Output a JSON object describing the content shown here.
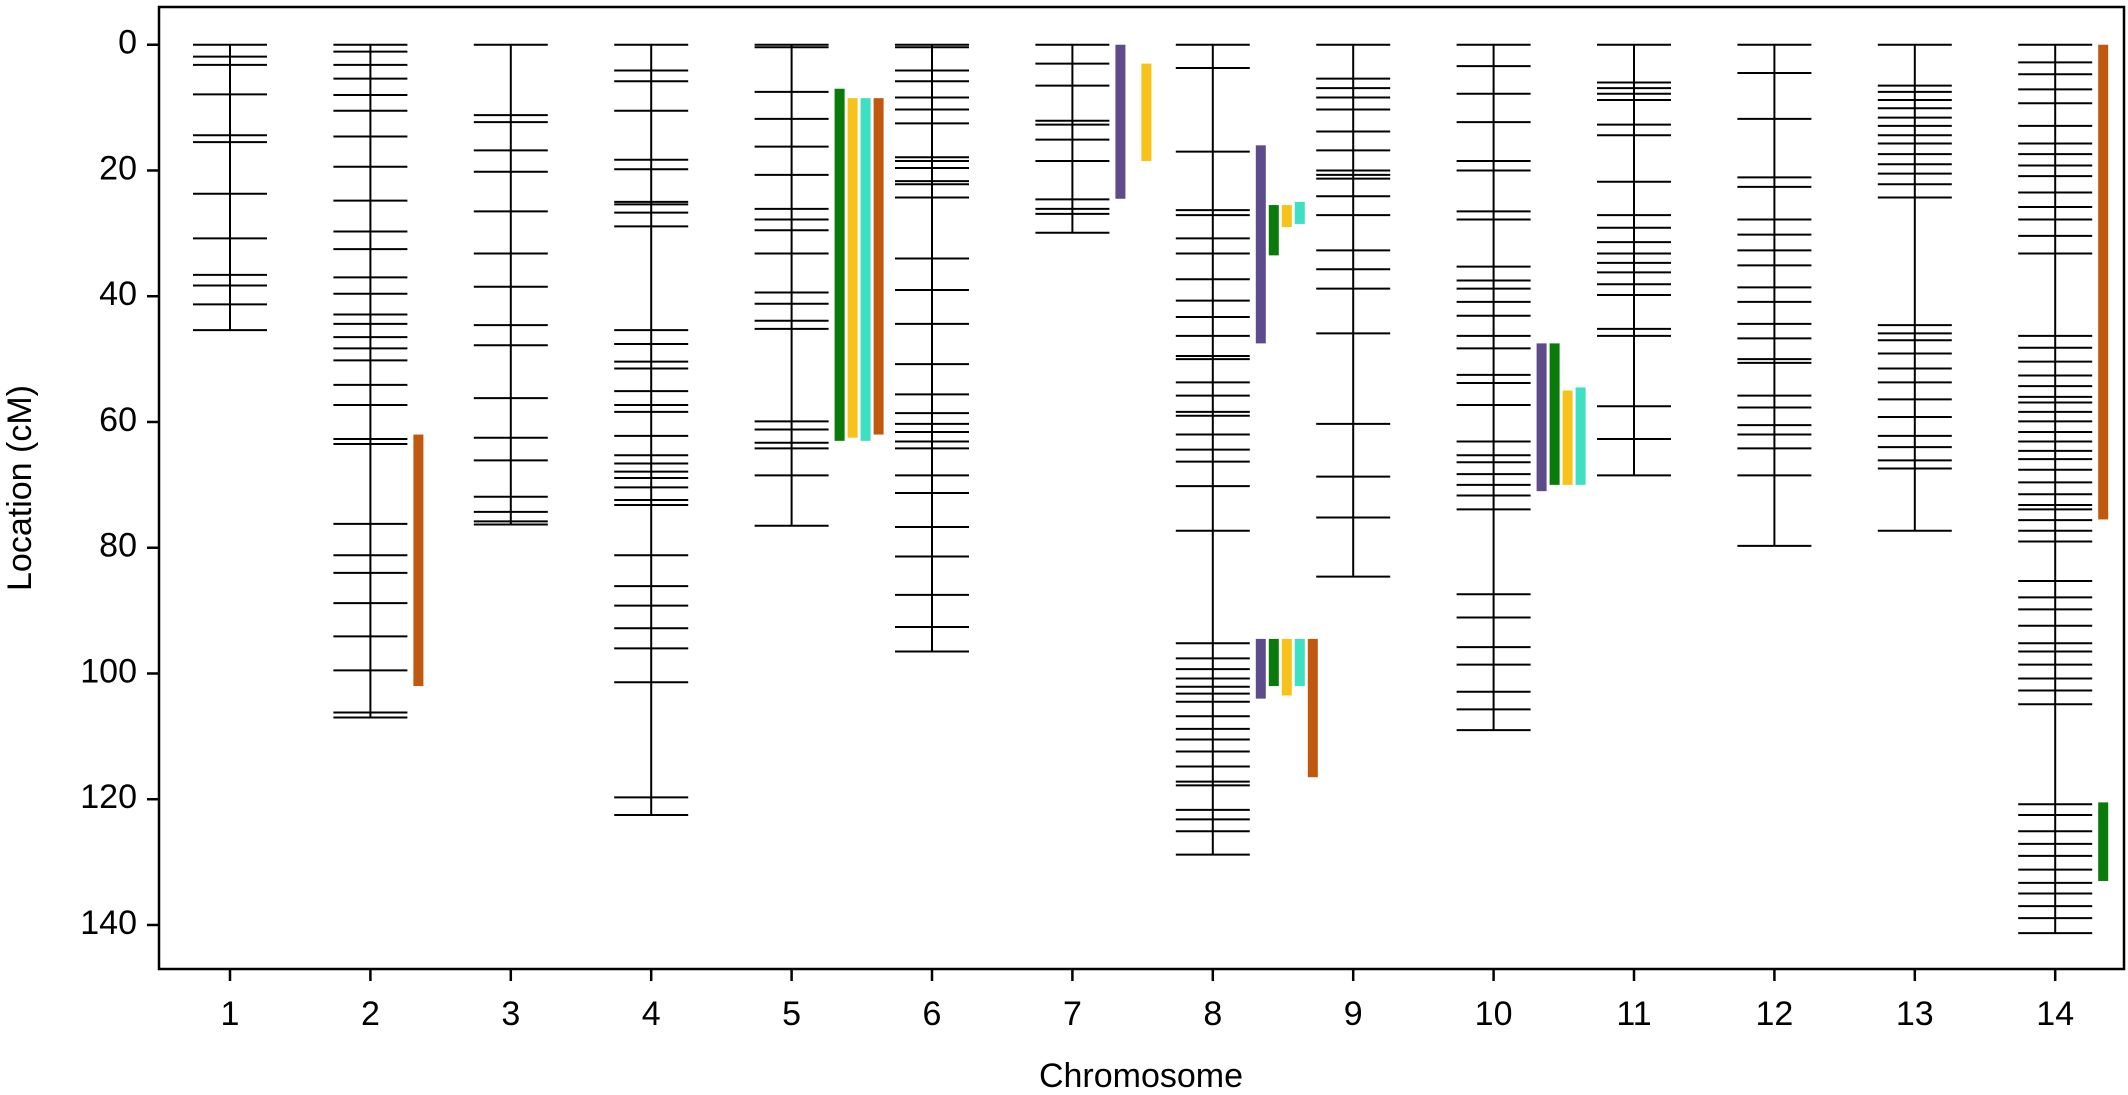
{
  "chart_data": {
    "type": "linkage",
    "x_label": "Chromosome",
    "y_label": "Location (cM)",
    "ylim": [
      -6,
      147
    ],
    "y_inverted": true,
    "yticks": [
      0,
      20,
      40,
      60,
      80,
      100,
      120,
      140
    ],
    "marker_color": "#000000",
    "categories": [
      "1",
      "2",
      "3",
      "4",
      "5",
      "6",
      "7",
      "8",
      "9",
      "10",
      "11",
      "12",
      "13",
      "14"
    ],
    "markers": [
      [
        0,
        1.9,
        3.2,
        7.9,
        14.4,
        15.5,
        23.7,
        30.8,
        36.6,
        38.3,
        41.3,
        45.4
      ],
      [
        0,
        1.1,
        3.2,
        5.4,
        8,
        10.5,
        14.6,
        19.4,
        24.8,
        29.7,
        32.5,
        37,
        39.6,
        42.9,
        44.4,
        46.5,
        48.3,
        50.2,
        54.1,
        57.3,
        62.7,
        63.5,
        76.2,
        81.2,
        84,
        88.8,
        94.1,
        99.5,
        106.2,
        107
      ],
      [
        0,
        11.2,
        12.3,
        16.8,
        20.2,
        26.5,
        33.2,
        38.5,
        44.6,
        47.8,
        56.2,
        62.5,
        66.1,
        71.9,
        74.3,
        75.8,
        76.3
      ],
      [
        0,
        4.1,
        5.8,
        10.5,
        18.3,
        19.8,
        25,
        25.4,
        26.7,
        28.9,
        45.4,
        47.6,
        50.4,
        51.5,
        55.1,
        57.3,
        58.4,
        62.2,
        65.3,
        66.6,
        67.9,
        68.9,
        70.4,
        72.4,
        73.2,
        81.2,
        86.1,
        89.2,
        92.8,
        96,
        101.4,
        119.7,
        122.5
      ],
      [
        0,
        0.4,
        7.5,
        11.8,
        16.2,
        20.7,
        26.1,
        27.8,
        29.5,
        33.2,
        39.4,
        41.2,
        43.9,
        45.2,
        59.9,
        61.2,
        63.3,
        64.2,
        68.5,
        76.5
      ],
      [
        0,
        0.4,
        4.1,
        5.8,
        8.4,
        10.3,
        12.5,
        17.9,
        18.5,
        19.6,
        21.7,
        22.2,
        24.3,
        34,
        39,
        44.4,
        50.8,
        55.6,
        58.6,
        60.3,
        61.6,
        63.1,
        64.2,
        68.5,
        71.3,
        76.7,
        81.4,
        87.5,
        92.6,
        96.5
      ],
      [
        0,
        3,
        6.5,
        12.1,
        12.7,
        15.1,
        18.5,
        24.6,
        26.1,
        26.9,
        29.9
      ],
      [
        0,
        3.7,
        17,
        26.3,
        27.1,
        30.8,
        33.2,
        37.3,
        40.7,
        43.3,
        46.3,
        49.5,
        50,
        53.7,
        55.8,
        58.4,
        59,
        62,
        64.4,
        66.3,
        70.2,
        77.3,
        95.2,
        97.6,
        99.3,
        100.8,
        102.1,
        103.2,
        104.5,
        106.8,
        108.8,
        110.5,
        112.4,
        114.8,
        117.2,
        117.8,
        121.7,
        123.2,
        125.1,
        128.8
      ],
      [
        0,
        5.4,
        6.9,
        8.4,
        10.3,
        13.8,
        16.8,
        20,
        20.7,
        21.3,
        24.1,
        27.1,
        32.7,
        35.7,
        38.8,
        45.9,
        60.3,
        68.7,
        75.2,
        84.6
      ],
      [
        0,
        3.4,
        7.8,
        12.3,
        18.5,
        20,
        26.5,
        27.8,
        35.3,
        37.5,
        38.8,
        40.9,
        43.1,
        46.3,
        48.3,
        52.5,
        53.8,
        57.3,
        63.1,
        65.3,
        66.4,
        68.3,
        70,
        71.7,
        73.9,
        87.4,
        91.1,
        95.8,
        98.6,
        102.9,
        105.7,
        109
      ],
      [
        0,
        6,
        6.9,
        7.8,
        8.8,
        12.7,
        14.4,
        21.8,
        27.1,
        29.1,
        31.4,
        33.2,
        34.7,
        36.2,
        38.1,
        39.8,
        45.2,
        46.3,
        57.5,
        62.7,
        68.5
      ],
      [
        0,
        4.5,
        11.8,
        21.1,
        22.6,
        27.8,
        30.2,
        32.7,
        35.1,
        38.6,
        40.9,
        44.4,
        46.7,
        50,
        50.6,
        55.8,
        57.7,
        60.5,
        62,
        64.2,
        68.5,
        79.7
      ],
      [
        0,
        6.5,
        7.5,
        8.8,
        10.1,
        11.6,
        12.9,
        14.4,
        15.7,
        17.4,
        19,
        20.5,
        22.2,
        24.3,
        44.6,
        45.9,
        47,
        49.1,
        51.5,
        53.7,
        56.4,
        59.2,
        62.2,
        64,
        66.1,
        67.4,
        77.3
      ],
      [
        0,
        2.8,
        4.7,
        7.1,
        9.3,
        12.9,
        15.7,
        17.4,
        19.2,
        20.9,
        23.5,
        25.8,
        27.8,
        30.4,
        33.2,
        46.3,
        48.2,
        50.4,
        52.6,
        54.3,
        56,
        56.9,
        58.4,
        59.9,
        61.6,
        63.1,
        64.6,
        65.9,
        67.6,
        69.6,
        71.5,
        73.2,
        73.9,
        75.6,
        77.3,
        79,
        85.3,
        87.9,
        89.8,
        92.4,
        95.2,
        96.5,
        98.6,
        100.8,
        102.7,
        104.9,
        120.8,
        122.5,
        125.1,
        127.1,
        129,
        131.2,
        133.3,
        135,
        137,
        138.9,
        141.3
      ]
    ],
    "qtls": [
      {
        "chromosome": "8",
        "start": 16,
        "end": 47.5,
        "color": "#5e4b8b"
      },
      {
        "chromosome": "8",
        "start": 25.5,
        "end": 33.5,
        "color": "#0a7a0a"
      },
      {
        "chromosome": "8",
        "start": 25.5,
        "end": 29,
        "color": "#f7c31b"
      },
      {
        "chromosome": "8",
        "start": 25,
        "end": 28.5,
        "color": "#3ee0c4"
      },
      {
        "chromosome": "8",
        "start": 94.5,
        "end": 104,
        "color": "#5e4b8b"
      },
      {
        "chromosome": "8",
        "start": 94.5,
        "end": 102,
        "color": "#0a7a0a"
      },
      {
        "chromosome": "8",
        "start": 94.5,
        "end": 103.5,
        "color": "#f7c31b"
      },
      {
        "chromosome": "8",
        "start": 94.5,
        "end": 102,
        "color": "#3ee0c4"
      },
      {
        "chromosome": "8",
        "start": 94.5,
        "end": 116.5,
        "color": "#c0580f"
      },
      {
        "chromosome": "2",
        "start": 62,
        "end": 102,
        "color": "#c0580f"
      },
      {
        "chromosome": "5",
        "start": 7,
        "end": 63,
        "color": "#0a7a0a"
      },
      {
        "chromosome": "5",
        "start": 8.5,
        "end": 62.5,
        "color": "#f7c31b"
      },
      {
        "chromosome": "5",
        "start": 8.5,
        "end": 63,
        "color": "#3ee0c4"
      },
      {
        "chromosome": "5",
        "start": 8.5,
        "end": 62,
        "color": "#c0580f"
      },
      {
        "chromosome": "7",
        "start": 0,
        "end": 24.5,
        "color": "#5e4b8b"
      },
      {
        "chromosome": "7",
        "start": 3,
        "end": 18.5,
        "color": "#f7c31b"
      },
      {
        "chromosome": "10",
        "start": 47.5,
        "end": 71,
        "color": "#5e4b8b"
      },
      {
        "chromosome": "10",
        "start": 47.5,
        "end": 70,
        "color": "#0a7a0a"
      },
      {
        "chromosome": "10",
        "start": 55,
        "end": 70,
        "color": "#f7c31b"
      },
      {
        "chromosome": "10",
        "start": 54.5,
        "end": 70,
        "color": "#3ee0c4"
      },
      {
        "chromosome": "14",
        "start": 0,
        "end": 75.5,
        "color": "#c0580f"
      },
      {
        "chromosome": "14",
        "start": 120.5,
        "end": 133,
        "color": "#0a7a0a"
      }
    ]
  }
}
